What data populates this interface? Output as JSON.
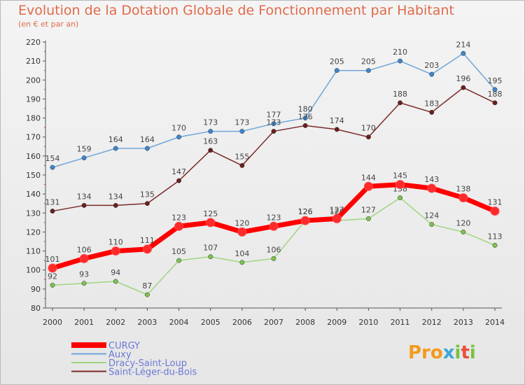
{
  "chart_data": {
    "type": "line",
    "title": "Evolution de la Dotation Globale de Fonctionnement par Habitant",
    "subtitle": "(en € et par an)",
    "x": [
      "2000",
      "2001",
      "2002",
      "2003",
      "2004",
      "2005",
      "2006",
      "2007",
      "2008",
      "2009",
      "2010",
      "2011",
      "2012",
      "2013",
      "2014"
    ],
    "ylim": [
      80,
      220
    ],
    "yticks": [
      80,
      90,
      100,
      110,
      120,
      130,
      140,
      150,
      160,
      170,
      180,
      190,
      200,
      210,
      220
    ],
    "grid": false,
    "legend_position": "bottom-left",
    "series": [
      {
        "name": "CURGY",
        "color": "#ff0000",
        "marker": "#ff2a2a",
        "values": [
          101,
          106,
          110,
          111,
          123,
          125,
          120,
          123,
          126,
          127,
          144,
          145,
          143,
          138,
          131
        ]
      },
      {
        "name": "Auxy",
        "color": "#6ea6d8",
        "marker": "#3d86cc",
        "values": [
          154,
          159,
          164,
          164,
          170,
          173,
          173,
          177,
          180,
          205,
          205,
          210,
          203,
          214,
          195
        ]
      },
      {
        "name": "Dracy-Saint-Loup",
        "color": "#9fd67f",
        "marker": "#7cc24f",
        "values": [
          92,
          93,
          94,
          87,
          105,
          107,
          104,
          106,
          126,
          126,
          127,
          138,
          124,
          120,
          113
        ]
      },
      {
        "name": "Saint-Léger-du-Bois",
        "color": "#7b2a2a",
        "marker": "#6a1e1e",
        "values": [
          131,
          134,
          134,
          135,
          147,
          163,
          155,
          173,
          176,
          174,
          170,
          188,
          183,
          196,
          188
        ]
      }
    ]
  },
  "logo": {
    "p1": "Pro",
    "p2": "x",
    "p3": "i",
    "p4": "t",
    "p5": "i"
  }
}
